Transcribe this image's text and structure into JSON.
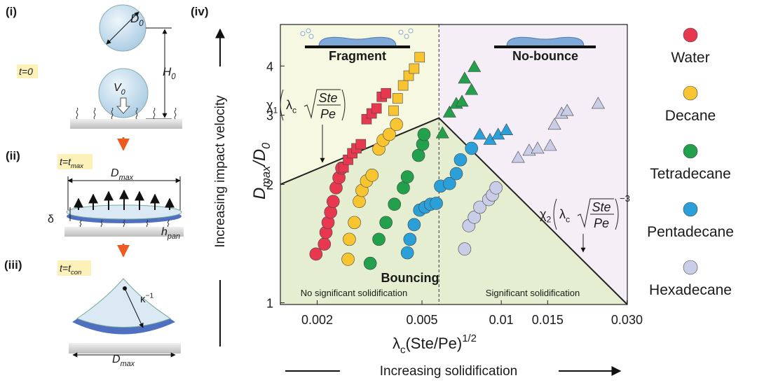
{
  "panels": {
    "i": "(i)",
    "ii": "(ii)",
    "iii": "(iii)",
    "iv": "(iv)"
  },
  "schematic": {
    "d0": {
      "main": "D",
      "sub": "0"
    },
    "h0": {
      "main": "H",
      "sub": "0"
    },
    "t0": "t=0",
    "v0": {
      "main": "V",
      "sub": "0"
    },
    "tmax": {
      "main": "t=t",
      "sub": "max"
    },
    "dmax1": {
      "main": "D",
      "sub": "max"
    },
    "delta": "δ",
    "hpan": {
      "main": "h",
      "sub": "pan"
    },
    "tcon": {
      "main": "t=t",
      "sub": "con"
    },
    "kappa": {
      "main": "κ",
      "sup": "−1"
    },
    "dmax2": {
      "main": "D",
      "sub": "max"
    }
  },
  "chart_data": {
    "type": "scatter",
    "x_label": {
      "main": "λ",
      "sub": "c",
      "mid": "(Ste/Pe)",
      "sup": "1/2"
    },
    "y_label": {
      "main": "D",
      "sub": "max",
      "mid": "/D",
      "sub2": "0"
    },
    "x_arrow_label": "Increasing solidification",
    "y_arrow_label": "Increasing impact velocity",
    "xscale": "log",
    "yscale": "log",
    "xlim": [
      0.00145,
      0.0301
    ],
    "ylim": [
      0.99,
      5.1
    ],
    "xticks": [
      0.002,
      0.005,
      0.01,
      0.015,
      {
        "value": 0.03,
        "label": "0.030"
      }
    ],
    "yticks": [
      1,
      2,
      3,
      4
    ],
    "region_colors": {
      "fragment": "#f7f8e1",
      "no_bounce": "#f6eef7",
      "bouncing": "#e6eed1"
    },
    "boundary": {
      "x": [
        0.00145,
        0.0058,
        0.0301
      ],
      "y": [
        2,
        2.95,
        0.99
      ]
    },
    "divider_x": 0.0058,
    "annotations": {
      "fragment": "Fragment",
      "no_bounce": "No-bounce",
      "bouncing": "Bouncing",
      "no_sig": "No significant solidification",
      "sig": "Significant solidification"
    },
    "chi1": {
      "main": "χ",
      "sub": "1",
      "arg": "λ",
      "argsub": "c",
      "num": "Ste",
      "den": "Pe"
    },
    "chi2": {
      "main": "χ",
      "sub": "2",
      "arg": "λ",
      "argsub": "c",
      "num": "Ste",
      "den": "Pe",
      "exp": "−3"
    },
    "series": [
      {
        "name": "Water",
        "color": "#e8384f",
        "x": [
          0.00198,
          0.00213,
          0.00216,
          0.0022,
          0.00225,
          0.0023,
          0.00236,
          0.00242,
          0.00248,
          0.00252,
          0.00262,
          0.00272,
          0.00282,
          0.00293,
          0.00308,
          0.00322,
          0.00336,
          0.00352,
          0.00365
        ],
        "values": [
          1.33,
          1.41,
          1.51,
          1.6,
          1.7,
          1.81,
          1.96,
          2.08,
          2.2,
          2.21,
          2.31,
          2.4,
          2.47,
          2.53,
          2.93,
          3.03,
          3.12,
          3.34,
          3.41
        ],
        "markers": [
          "circle",
          "circle",
          "circle",
          "circle",
          "circle",
          "circle",
          "circle",
          "circle",
          "circle",
          "square",
          "square",
          "square",
          "square",
          "square",
          "square",
          "square",
          "square",
          "square",
          "square"
        ]
      },
      {
        "name": "Decane",
        "color": "#f8c531",
        "x": [
          0.00262,
          0.00265,
          0.00277,
          0.00289,
          0.00296,
          0.00308,
          0.00323,
          0.00343,
          0.00356,
          0.00376,
          0.004,
          0.0039,
          0.00404,
          0.00424,
          0.00445,
          0.00467,
          0.0049
        ],
        "values": [
          1.29,
          1.45,
          1.6,
          1.81,
          1.93,
          2.04,
          2.11,
          2.46,
          2.59,
          2.68,
          2.84,
          3.08,
          3.31,
          3.57,
          3.78,
          3.94,
          4.21
        ],
        "markers": [
          "circle",
          "circle",
          "circle",
          "circle",
          "circle",
          "circle",
          "circle",
          "circle",
          "circle",
          "circle",
          "circle",
          "square",
          "square",
          "square",
          "square",
          "square",
          "square"
        ]
      },
      {
        "name": "Tetradecane",
        "color": "#22a04b",
        "x": [
          0.00318,
          0.00343,
          0.00365,
          0.00393,
          0.00425,
          0.0044,
          0.00485,
          0.00503,
          0.00509,
          0.00598,
          0.00636,
          0.00675,
          0.00709,
          0.00726,
          0.00771,
          0.0079
        ],
        "values": [
          1.26,
          1.45,
          1.6,
          1.78,
          1.96,
          2.09,
          2.37,
          2.53,
          2.68,
          2.7,
          3.05,
          3.21,
          3.25,
          3.72,
          3.48,
          3.98
        ],
        "markers": [
          "circle",
          "circle",
          "circle",
          "circle",
          "circle",
          "circle",
          "circle",
          "circle",
          "circle",
          "triangle",
          "triangle",
          "triangle",
          "triangle",
          "triangle",
          "triangle",
          "triangle"
        ]
      },
      {
        "name": "Pentadecane",
        "color": "#2a9fd8",
        "x": [
          0.0044,
          0.0045,
          0.00467,
          0.0049,
          0.00514,
          0.00539,
          0.00567,
          0.00588,
          0.00636,
          0.00675,
          0.007,
          0.00771,
          0.00829,
          0.00906,
          0.00973,
          0.01046
        ],
        "values": [
          1.34,
          1.45,
          1.58,
          1.72,
          1.75,
          1.78,
          1.79,
          1.98,
          2.01,
          2.13,
          2.31,
          2.47,
          2.68,
          2.6,
          2.68,
          2.75
        ],
        "markers": [
          "circle",
          "circle",
          "circle",
          "circle",
          "circle",
          "circle",
          "circle",
          "circle",
          "circle",
          "circle",
          "circle",
          "circle",
          "triangle",
          "triangle",
          "triangle",
          "triangle"
        ]
      },
      {
        "name": "Hexadecane",
        "color": "#c9cde8",
        "x": [
          0.00726,
          0.00753,
          0.0079,
          0.00829,
          0.00896,
          0.00926,
          0.00955,
          0.01159,
          0.01276,
          0.01374,
          0.01534,
          0.01592,
          0.01694,
          0.01778,
          0.02333
        ],
        "values": [
          1.37,
          1.57,
          1.65,
          1.75,
          1.83,
          1.88,
          1.96,
          2.34,
          2.44,
          2.47,
          2.51,
          2.84,
          3.03,
          3.08,
          3.21
        ],
        "markers": [
          "circle",
          "circle",
          "circle",
          "circle",
          "circle",
          "circle",
          "circle",
          "triangle",
          "triangle",
          "triangle",
          "triangle",
          "triangle",
          "triangle",
          "triangle",
          "triangle"
        ]
      }
    ]
  }
}
